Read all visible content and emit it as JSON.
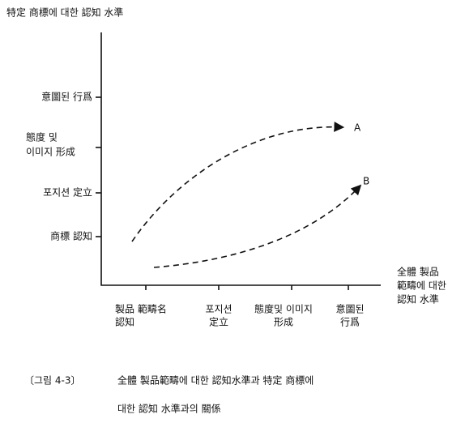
{
  "title": "特定 商標에 대한 認知 水準",
  "y_axis": {
    "levels": [
      [
        "意圖된 行爲"
      ],
      [
        "態度 및",
        "이미지 形成"
      ],
      [
        "포지션 定立"
      ],
      [
        "商標 認知"
      ]
    ]
  },
  "x_axis": {
    "label": [
      "全體 製品",
      "範疇에 대한",
      "認知 水準"
    ],
    "levels": [
      [
        "製品 範疇名",
        "認知"
      ],
      [
        "포지션",
        "定立"
      ],
      [
        "態度및 이미지",
        "形成"
      ],
      [
        "意圖된",
        "行爲"
      ]
    ]
  },
  "curves": [
    {
      "label": "A"
    },
    {
      "label": "B"
    }
  ],
  "caption": {
    "number": "〔그림 4-3〕",
    "lines": [
      "全體 製品範疇에 대한 認知水準과 特定 商標에",
      "대한 認知 水準과의 關係"
    ]
  }
}
